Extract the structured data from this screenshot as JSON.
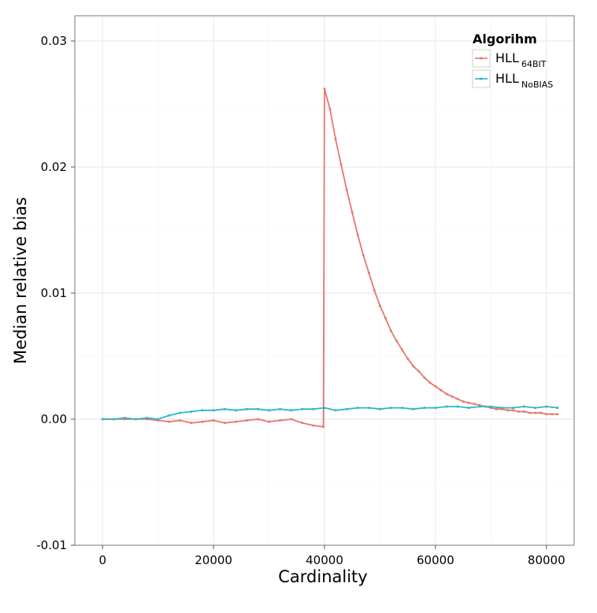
{
  "chart_data": {
    "type": "line",
    "title": "",
    "xlabel": "Cardinality",
    "ylabel": "Median relative bias",
    "xlim": [
      -5000,
      85000
    ],
    "ylim": [
      -0.01,
      0.032
    ],
    "x_ticks": [
      0,
      20000,
      40000,
      60000,
      80000
    ],
    "x_tick_labels": [
      "0",
      "20000",
      "40000",
      "60000",
      "80000"
    ],
    "y_ticks": [
      -0.01,
      0.0,
      0.01,
      0.02,
      0.03
    ],
    "y_tick_labels": [
      "-0.01",
      "0.00",
      "0.01",
      "0.02",
      "0.03"
    ],
    "grid": true,
    "legend": {
      "title": "Algorihm",
      "placement": "top-right",
      "entries": [
        {
          "main": "HLL",
          "sub": "64BIT"
        },
        {
          "main": "HLL",
          "sub": "NoBIAS"
        }
      ]
    },
    "series": [
      {
        "color": "#E8766D",
        "x": [
          0,
          2000,
          4000,
          6000,
          8000,
          10000,
          12000,
          14000,
          16000,
          18000,
          20000,
          22000,
          24000,
          26000,
          28000,
          30000,
          32000,
          34000,
          36000,
          38000,
          39800,
          40000,
          41000,
          42000,
          43000,
          44000,
          45000,
          46000,
          47000,
          48000,
          49000,
          50000,
          51000,
          52000,
          53000,
          54000,
          55000,
          56000,
          57000,
          58000,
          59000,
          60000,
          61000,
          62000,
          63000,
          64000,
          65000,
          66000,
          67000,
          68000,
          69000,
          70000,
          71000,
          72000,
          73000,
          74000,
          75000,
          76000,
          77000,
          78000,
          79000,
          80000,
          81000,
          82000
        ],
        "y": [
          0.0,
          0.0,
          0.0,
          0.0,
          0.0,
          -0.0001,
          -0.0002,
          -0.0001,
          -0.0003,
          -0.0002,
          -0.0001,
          -0.0003,
          -0.0002,
          -0.0001,
          0.0,
          -0.0002,
          -0.0001,
          0.0,
          -0.0003,
          -0.0005,
          -0.0006,
          0.0262,
          0.0246,
          0.0222,
          0.0202,
          0.0182,
          0.0164,
          0.0146,
          0.013,
          0.0116,
          0.0102,
          0.009,
          0.008,
          0.007,
          0.0062,
          0.0055,
          0.0048,
          0.0042,
          0.0038,
          0.0033,
          0.0029,
          0.0026,
          0.0023,
          0.002,
          0.0018,
          0.0016,
          0.0014,
          0.0013,
          0.0012,
          0.0011,
          0.001,
          0.0009,
          0.0008,
          0.0008,
          0.0007,
          0.0007,
          0.0006,
          0.0006,
          0.0005,
          0.0005,
          0.0005,
          0.0004,
          0.0004,
          0.0004
        ]
      },
      {
        "color": "#2DB7C5",
        "x": [
          0,
          2000,
          4000,
          6000,
          8000,
          10000,
          12000,
          14000,
          16000,
          18000,
          20000,
          22000,
          24000,
          26000,
          28000,
          30000,
          32000,
          34000,
          36000,
          38000,
          40000,
          42000,
          44000,
          46000,
          48000,
          50000,
          52000,
          54000,
          56000,
          58000,
          60000,
          62000,
          64000,
          66000,
          68000,
          70000,
          72000,
          74000,
          76000,
          78000,
          80000,
          82000
        ],
        "y": [
          0.0,
          0.0,
          0.0001,
          0.0,
          0.0001,
          0.0,
          0.0003,
          0.0005,
          0.0006,
          0.0007,
          0.0007,
          0.0008,
          0.0007,
          0.0008,
          0.0008,
          0.0007,
          0.0008,
          0.0007,
          0.0008,
          0.0008,
          0.0009,
          0.0007,
          0.0008,
          0.0009,
          0.0009,
          0.0008,
          0.0009,
          0.0009,
          0.0008,
          0.0009,
          0.0009,
          0.001,
          0.001,
          0.0009,
          0.001,
          0.001,
          0.0009,
          0.0009,
          0.001,
          0.0009,
          0.001,
          0.0009
        ]
      }
    ]
  }
}
